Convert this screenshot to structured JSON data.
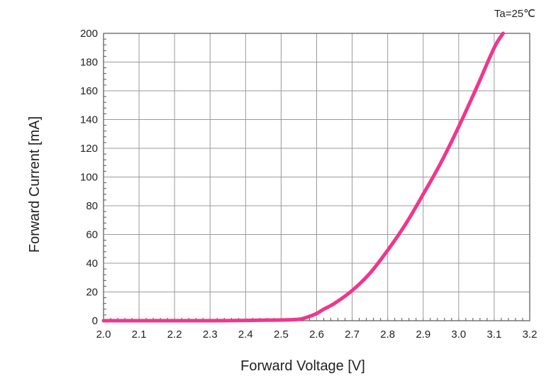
{
  "chart_data": {
    "type": "line",
    "title": "",
    "annotation": "Ta=25℃",
    "xlabel": "Forward Voltage [V]",
    "ylabel": "Forward Current [mA]",
    "xlim": [
      2.0,
      3.2
    ],
    "ylim": [
      0,
      200
    ],
    "x_ticks": [
      "2.0",
      "2.1",
      "2.2",
      "2.3",
      "2.4",
      "2.5",
      "2.6",
      "2.7",
      "2.8",
      "2.9",
      "3.0",
      "3.1",
      "3.2"
    ],
    "y_ticks": [
      "0",
      "20",
      "40",
      "60",
      "80",
      "100",
      "120",
      "140",
      "160",
      "180",
      "200"
    ],
    "grid": true,
    "legend": "none",
    "series": [
      {
        "color": "#f0368c",
        "x": [
          2.0,
          2.1,
          2.2,
          2.3,
          2.4,
          2.5,
          2.55,
          2.58,
          2.6,
          2.62,
          2.65,
          2.7,
          2.75,
          2.8,
          2.85,
          2.9,
          2.95,
          3.0,
          3.05,
          3.1,
          3.125
        ],
        "y": [
          0,
          0,
          0,
          0,
          0.2,
          0.5,
          1,
          3,
          5,
          8,
          12,
          21,
          33,
          49,
          67,
          88,
          110,
          135,
          162,
          190,
          200
        ]
      }
    ]
  }
}
